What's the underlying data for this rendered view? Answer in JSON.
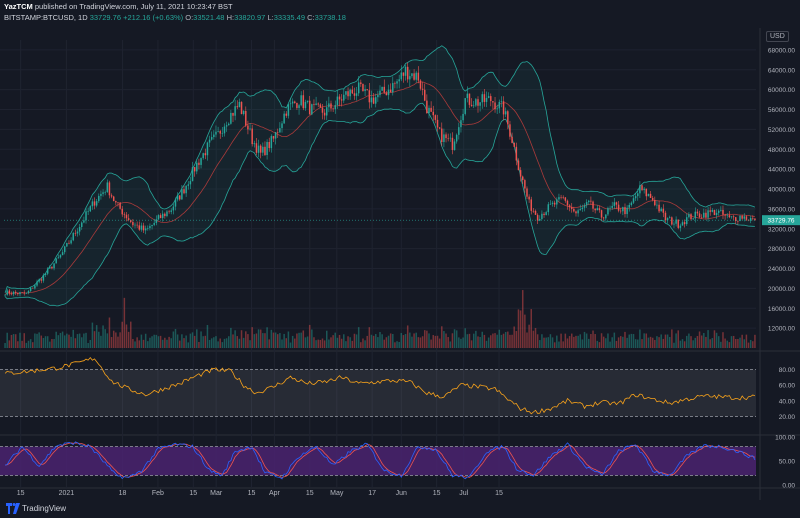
{
  "header": {
    "publisher": "YazTCM",
    "publisher_rest": "published on TradingView.com, July 11, 2021 10:23:47 BST",
    "symbol_line": "BITSTAMP:BTCUSD, 1D",
    "last": "33729.76",
    "change": "+212.16 (+0.63%)",
    "o_label": "O:",
    "o": "33521.48",
    "h_label": "H:",
    "h": "33820.97",
    "l_label": "L:",
    "l": "33335.49",
    "c_label": "C:",
    "c": "33738.18"
  },
  "price_axis_label": "USD",
  "footer": {
    "brand": "TradingView"
  },
  "colors": {
    "up": "#26a69a",
    "down": "#ef5350",
    "band": "#26a69a",
    "basis": "#a83a3a",
    "rsi": "#f7a21b",
    "stoch_k": "#2962ff",
    "stoch_d": "#ef5350",
    "stoch_fill": "#4a2370"
  },
  "chart_data": {
    "type": "candlestick",
    "price_ticks": [
      "68000.00",
      "64000.00",
      "60000.00",
      "56000.00",
      "52000.00",
      "48000.00",
      "44000.00",
      "40000.00",
      "36000.00",
      "32000.00",
      "28000.00",
      "24000.00",
      "20000.00",
      "16000.00",
      "12000.00"
    ],
    "rsi_ticks": [
      "80.00",
      "60.00",
      "40.00",
      "20.00"
    ],
    "stoch_ticks": [
      "100.00",
      "50.00",
      "0.00"
    ],
    "x_ticks": [
      "15",
      "2021",
      "18",
      "Feb",
      "15",
      "Mar",
      "15",
      "Apr",
      "15",
      "May",
      "17",
      "Jun",
      "15",
      "Jul",
      "15"
    ],
    "last_price": 33729.76,
    "price_range": [
      8000,
      70000
    ],
    "price_anchors": [
      [
        0,
        19200
      ],
      [
        10,
        18900
      ],
      [
        18,
        22500
      ],
      [
        26,
        26500
      ],
      [
        34,
        32000
      ],
      [
        42,
        37500
      ],
      [
        48,
        40500
      ],
      [
        52,
        37000
      ],
      [
        56,
        35000
      ],
      [
        60,
        33000
      ],
      [
        66,
        31500
      ],
      [
        72,
        34000
      ],
      [
        78,
        36000
      ],
      [
        84,
        40000
      ],
      [
        90,
        45000
      ],
      [
        96,
        49000
      ],
      [
        100,
        51000
      ],
      [
        104,
        54000
      ],
      [
        110,
        57000
      ],
      [
        116,
        50000
      ],
      [
        120,
        47000
      ],
      [
        126,
        50000
      ],
      [
        132,
        56000
      ],
      [
        138,
        58000
      ],
      [
        144,
        56000
      ],
      [
        150,
        55500
      ],
      [
        156,
        57500
      ],
      [
        160,
        59000
      ],
      [
        166,
        60000
      ],
      [
        172,
        58000
      ],
      [
        178,
        59500
      ],
      [
        184,
        61500
      ],
      [
        188,
        63800
      ],
      [
        194,
        62500
      ],
      [
        198,
        56500
      ],
      [
        204,
        51000
      ],
      [
        210,
        49000
      ],
      [
        216,
        58000
      ],
      [
        222,
        57500
      ],
      [
        228,
        58000
      ],
      [
        234,
        56000
      ],
      [
        238,
        50000
      ],
      [
        242,
        43000
      ],
      [
        246,
        37000
      ],
      [
        250,
        34500
      ],
      [
        256,
        36500
      ],
      [
        262,
        38000
      ],
      [
        268,
        35000
      ],
      [
        274,
        37000
      ],
      [
        280,
        34500
      ],
      [
        286,
        36500
      ],
      [
        292,
        35500
      ],
      [
        298,
        40000
      ],
      [
        304,
        38000
      ],
      [
        310,
        34000
      ],
      [
        316,
        33000
      ],
      [
        322,
        34500
      ],
      [
        328,
        35000
      ],
      [
        334,
        35500
      ],
      [
        340,
        34000
      ],
      [
        346,
        34500
      ],
      [
        352,
        33700
      ]
    ],
    "volume_range": [
      0,
      70000
    ],
    "rsi_range": [
      0,
      100
    ],
    "rsi_anchors": [
      [
        0,
        75
      ],
      [
        12,
        78
      ],
      [
        24,
        82
      ],
      [
        34,
        88
      ],
      [
        42,
        95
      ],
      [
        50,
        65
      ],
      [
        58,
        55
      ],
      [
        66,
        48
      ],
      [
        74,
        55
      ],
      [
        82,
        62
      ],
      [
        90,
        72
      ],
      [
        98,
        80
      ],
      [
        106,
        78
      ],
      [
        112,
        60
      ],
      [
        118,
        50
      ],
      [
        126,
        58
      ],
      [
        134,
        70
      ],
      [
        142,
        62
      ],
      [
        150,
        64
      ],
      [
        158,
        70
      ],
      [
        166,
        62
      ],
      [
        174,
        64
      ],
      [
        182,
        66
      ],
      [
        190,
        64
      ],
      [
        198,
        50
      ],
      [
        206,
        45
      ],
      [
        214,
        60
      ],
      [
        222,
        58
      ],
      [
        230,
        55
      ],
      [
        236,
        42
      ],
      [
        242,
        30
      ],
      [
        248,
        25
      ],
      [
        256,
        30
      ],
      [
        264,
        40
      ],
      [
        272,
        33
      ],
      [
        280,
        38
      ],
      [
        288,
        36
      ],
      [
        296,
        48
      ],
      [
        304,
        42
      ],
      [
        312,
        37
      ],
      [
        320,
        42
      ],
      [
        328,
        46
      ],
      [
        336,
        45
      ],
      [
        344,
        44
      ],
      [
        352,
        45
      ]
    ],
    "stoch_range": [
      0,
      100
    ],
    "stoch_anchors": [
      [
        0,
        40
      ],
      [
        8,
        80
      ],
      [
        16,
        40
      ],
      [
        24,
        82
      ],
      [
        32,
        88
      ],
      [
        40,
        80
      ],
      [
        46,
        50
      ],
      [
        52,
        20
      ],
      [
        58,
        15
      ],
      [
        64,
        30
      ],
      [
        72,
        75
      ],
      [
        80,
        85
      ],
      [
        88,
        80
      ],
      [
        96,
        30
      ],
      [
        102,
        20
      ],
      [
        108,
        70
      ],
      [
        116,
        80
      ],
      [
        122,
        25
      ],
      [
        130,
        15
      ],
      [
        138,
        60
      ],
      [
        146,
        80
      ],
      [
        154,
        40
      ],
      [
        162,
        70
      ],
      [
        170,
        85
      ],
      [
        178,
        30
      ],
      [
        186,
        20
      ],
      [
        194,
        80
      ],
      [
        202,
        75
      ],
      [
        210,
        20
      ],
      [
        218,
        15
      ],
      [
        226,
        70
      ],
      [
        234,
        80
      ],
      [
        240,
        35
      ],
      [
        248,
        20
      ],
      [
        256,
        60
      ],
      [
        264,
        85
      ],
      [
        272,
        40
      ],
      [
        280,
        20
      ],
      [
        288,
        70
      ],
      [
        296,
        85
      ],
      [
        304,
        30
      ],
      [
        312,
        20
      ],
      [
        320,
        60
      ],
      [
        328,
        82
      ],
      [
        336,
        80
      ],
      [
        344,
        70
      ],
      [
        352,
        55
      ]
    ],
    "rsi_levels": [
      80,
      20
    ],
    "stoch_levels": [
      80,
      20
    ],
    "bars": 353
  }
}
